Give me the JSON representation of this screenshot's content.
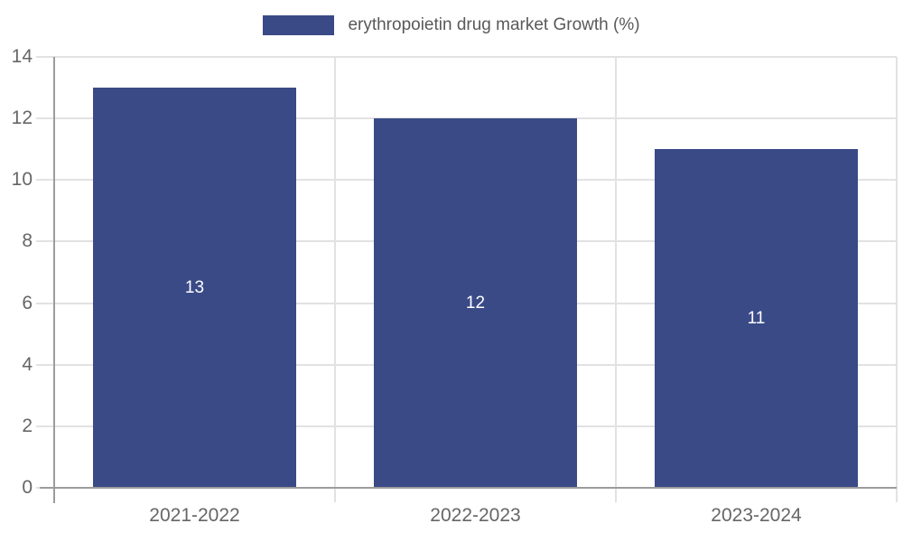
{
  "chart_data": {
    "type": "bar",
    "title": "",
    "categories": [
      "2021-2022",
      "2022-2023",
      "2023-2024"
    ],
    "series": [
      {
        "name": "erythropoietin drug market Growth (%)",
        "values": [
          13,
          12,
          11
        ]
      }
    ],
    "bar_value_labels": [
      "13",
      "12",
      "11"
    ],
    "xlabel": "",
    "ylabel": "",
    "ylim": [
      0,
      14
    ],
    "yticks": [
      0,
      2,
      4,
      6,
      8,
      10,
      12,
      14
    ],
    "grid": true,
    "legend_position": "top-center",
    "colors": {
      "bar": "#3a4a87",
      "bar_label": "#ffffff",
      "grid": "#e2e2e2",
      "axis": "#9c9c9c",
      "tick_label": "#666666",
      "legend_text": "#595959",
      "background": "#ffffff"
    }
  }
}
